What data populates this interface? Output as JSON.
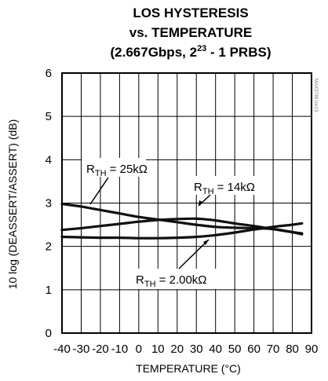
{
  "chart_data": {
    "type": "line",
    "title_line1": "LOS HYSTERESIS",
    "title_line2": "vs. TEMPERATURE",
    "title_line3_prefix": "(2.667Gbps, 2",
    "title_line3_sup": "23",
    "title_line3_suffix": " - 1 PRBS)",
    "xlabel": "TEMPERATURE (°C)",
    "ylabel": "10 log (DEASSERT/ASSERT) (dB)",
    "xlim": [
      -40,
      90
    ],
    "ylim": [
      0,
      6
    ],
    "xticks": [
      -40,
      -30,
      -20,
      -10,
      0,
      10,
      20,
      30,
      40,
      50,
      60,
      70,
      80,
      90
    ],
    "yticks": [
      0,
      1,
      2,
      3,
      4,
      5,
      6
    ],
    "grid": true,
    "watermark": "MAX3748 toc15",
    "series": [
      {
        "x": [
          -40,
          -30,
          -20,
          -10,
          0,
          10,
          20,
          30,
          40,
          50,
          60,
          70,
          80,
          85
        ],
        "y": [
          2.98,
          2.92,
          2.84,
          2.76,
          2.68,
          2.62,
          2.56,
          2.5,
          2.45,
          2.43,
          2.42,
          2.4,
          2.33,
          2.28
        ]
      },
      {
        "x": [
          -40,
          -30,
          -20,
          -10,
          0,
          10,
          20,
          30,
          40,
          50,
          60,
          70,
          80,
          85
        ],
        "y": [
          2.38,
          2.42,
          2.47,
          2.52,
          2.57,
          2.61,
          2.63,
          2.64,
          2.6,
          2.53,
          2.47,
          2.4,
          2.33,
          2.3
        ]
      },
      {
        "x": [
          -40,
          -30,
          -20,
          -10,
          0,
          10,
          20,
          30,
          40,
          50,
          60,
          70,
          80,
          85
        ],
        "y": [
          2.22,
          2.21,
          2.2,
          2.2,
          2.19,
          2.19,
          2.2,
          2.22,
          2.26,
          2.32,
          2.39,
          2.45,
          2.5,
          2.53
        ]
      }
    ],
    "annotations": [
      {
        "label_prefix": "R",
        "label_sub": "TH",
        "label_suffix": " = 25kΩ"
      },
      {
        "label_prefix": "R",
        "label_sub": "TH",
        "label_suffix": " = 14kΩ"
      },
      {
        "label_prefix": "R",
        "label_sub": "TH",
        "label_suffix": " = 2.00kΩ"
      }
    ]
  }
}
